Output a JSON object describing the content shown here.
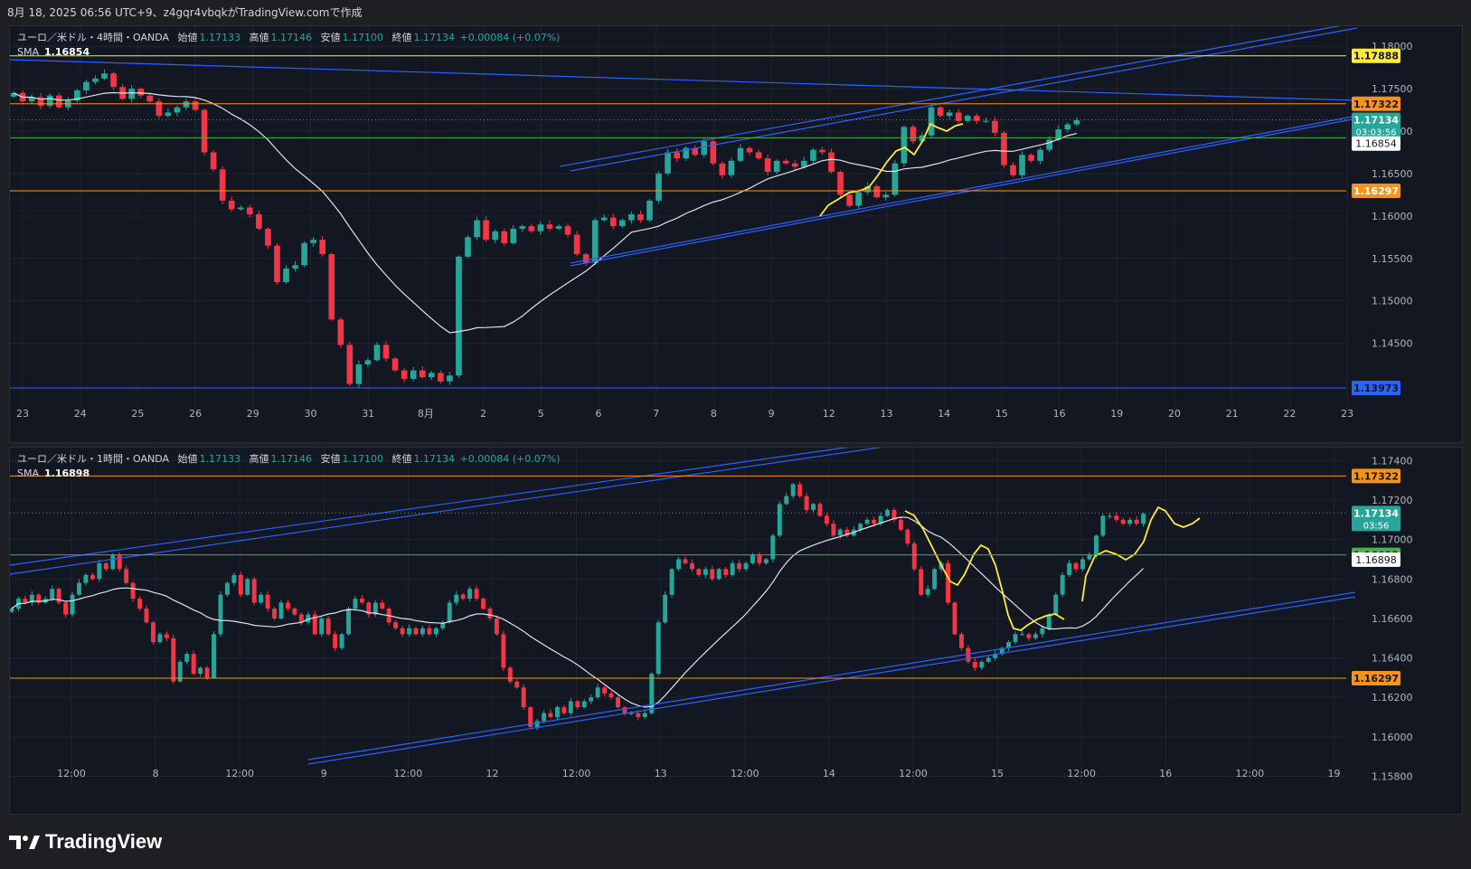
{
  "header": {
    "snapshot_info": "8月 18, 2025 06:56 UTC+9、z4gqr4vbqkがTradingView.comで作成"
  },
  "footer": {
    "brand": "TradingView"
  },
  "colors": {
    "bg": "#131722",
    "up": "#26a69a",
    "down": "#f23645",
    "sma": "#e0e3eb",
    "channel": "#2962ff",
    "orange": "#f7931a",
    "yellow": "#ffeb3b",
    "green_line": "#4caf50",
    "blue_line": "#2962ff",
    "grid": "#1f2330"
  },
  "chart_data": [
    {
      "type": "candlestick",
      "symbol": "ユーロ／米ドル・4時間・OANDA",
      "ohlc": {
        "open_label": "始値",
        "open": "1.17133",
        "high_label": "高値",
        "high": "1.17146",
        "low_label": "安値",
        "low": "1.17100",
        "close_label": "終値",
        "close": "1.17134",
        "change": "+0.00084 (+0.07%)"
      },
      "sma_label": "SMA",
      "sma_value": "1.16854",
      "ylim": [
        1.1376,
        1.1813
      ],
      "y_ticks": [
        "1.18000",
        "1.17500",
        "1.17000",
        "1.16500",
        "1.16000",
        "1.15500",
        "1.15000",
        "1.14500"
      ],
      "x_ticks": [
        "23",
        "24",
        "25",
        "26",
        "29",
        "30",
        "31",
        "8月",
        "2",
        "5",
        "6",
        "7",
        "8",
        "9",
        "12",
        "13",
        "14",
        "15",
        "16",
        "19",
        "20",
        "21",
        "22",
        "23"
      ],
      "horizontal_levels": [
        {
          "value": 1.17888,
          "label": "1.17888",
          "color": "#ffeb3b",
          "text_color": "#131722"
        },
        {
          "value": 1.17322,
          "label": "1.17322",
          "color": "#f7931a",
          "text_color": "#131722"
        },
        {
          "value": 1.16922,
          "label": "1.16922",
          "color": "#4caf50",
          "text_color": "#131722"
        },
        {
          "value": 1.16297,
          "label": "1.16297",
          "color": "#f7931a",
          "text_color": "#ffffff"
        },
        {
          "value": 1.13973,
          "label": "1.13973",
          "color": "#2962ff",
          "text_color": "#131722"
        }
      ],
      "last_price": {
        "value": 1.17134,
        "label": "1.17134",
        "countdown": "03:03:56"
      },
      "sma_tag": {
        "value": 1.16854,
        "label": "1.16854"
      },
      "closes": [
        1.1745,
        1.1735,
        1.174,
        1.173,
        1.1742,
        1.1728,
        1.1736,
        1.1748,
        1.1758,
        1.1762,
        1.1768,
        1.1752,
        1.1738,
        1.175,
        1.1742,
        1.1735,
        1.1718,
        1.1722,
        1.1728,
        1.1735,
        1.1725,
        1.1675,
        1.1655,
        1.1618,
        1.1608,
        1.161,
        1.1602,
        1.1585,
        1.1565,
        1.1522,
        1.1538,
        1.1542,
        1.1568,
        1.1572,
        1.1555,
        1.1478,
        1.1448,
        1.1402,
        1.1425,
        1.143,
        1.1448,
        1.1432,
        1.1418,
        1.1408,
        1.1418,
        1.141,
        1.1415,
        1.1405,
        1.1412,
        1.1552,
        1.1575,
        1.1595,
        1.1572,
        1.1582,
        1.1568,
        1.1585,
        1.1588,
        1.1582,
        1.159,
        1.1585,
        1.1588,
        1.1578,
        1.1555,
        1.1545,
        1.1595,
        1.1598,
        1.1588,
        1.1595,
        1.1602,
        1.1595,
        1.1618,
        1.165,
        1.1675,
        1.1668,
        1.168,
        1.1672,
        1.1688,
        1.1662,
        1.1648,
        1.1665,
        1.168,
        1.1675,
        1.1668,
        1.1652,
        1.1665,
        1.1662,
        1.1658,
        1.1665,
        1.1678,
        1.1675,
        1.1652,
        1.1625,
        1.1612,
        1.1628,
        1.1635,
        1.1622,
        1.1625,
        1.1662,
        1.1705,
        1.1688,
        1.1695,
        1.1728,
        1.1718,
        1.1722,
        1.1712,
        1.1718,
        1.1712,
        1.1712,
        1.1698,
        1.166,
        1.1648,
        1.1672,
        1.1665,
        1.1678,
        1.169,
        1.1702,
        1.1708,
        1.1713
      ]
    },
    {
      "type": "candlestick",
      "symbol": "ユーロ／米ドル・1時間・OANDA",
      "ohlc": {
        "open_label": "始値",
        "open": "1.17133",
        "high_label": "高値",
        "high": "1.17146",
        "low_label": "安値",
        "low": "1.17100",
        "close_label": "終値",
        "close": "1.17134",
        "change": "+0.00084 (+0.07%)"
      },
      "sma_label": "SMA",
      "sma_value": "1.16898",
      "ylim": [
        1.1577,
        1.1742
      ],
      "y_ticks": [
        "1.17400",
        "1.17200",
        "1.17000",
        "1.16800",
        "1.16600",
        "1.16400",
        "1.16200",
        "1.16000",
        "1.15800"
      ],
      "x_ticks": [
        "12:00",
        "8",
        "12:00",
        "9",
        "12:00",
        "12",
        "12:00",
        "13",
        "12:00",
        "14",
        "12:00",
        "15",
        "12:00",
        "16",
        "12:00",
        "19"
      ],
      "horizontal_levels": [
        {
          "value": 1.17322,
          "label": "1.17322",
          "color": "#f7931a",
          "text_color": "#131722"
        },
        {
          "value": 1.16922,
          "label": "1.16922",
          "color": "#4caf50",
          "text_color": "#131722"
        },
        {
          "value": 1.16297,
          "label": "1.16297",
          "color": "#f7931a",
          "text_color": "#131722"
        }
      ],
      "last_price": {
        "value": 1.17134,
        "label": "1.17134",
        "countdown": "03:56"
      },
      "sma_tag": {
        "value": 1.16898,
        "label": "1.16898"
      },
      "closes": [
        1.1665,
        1.167,
        1.1668,
        1.1672,
        1.1668,
        1.167,
        1.1675,
        1.1668,
        1.1662,
        1.1672,
        1.1678,
        1.1682,
        1.168,
        1.1688,
        1.1685,
        1.1692,
        1.1685,
        1.1678,
        1.167,
        1.1665,
        1.1658,
        1.1648,
        1.1652,
        1.165,
        1.1628,
        1.1638,
        1.1642,
        1.1632,
        1.1635,
        1.163,
        1.1652,
        1.1672,
        1.1678,
        1.1682,
        1.1672,
        1.168,
        1.1668,
        1.1672,
        1.1665,
        1.166,
        1.1668,
        1.1665,
        1.1662,
        1.1658,
        1.1662,
        1.1652,
        1.166,
        1.1652,
        1.1645,
        1.1652,
        1.1665,
        1.167,
        1.1668,
        1.1662,
        1.1668,
        1.1665,
        1.1658,
        1.1655,
        1.1652,
        1.1655,
        1.1652,
        1.1655,
        1.1652,
        1.1655,
        1.1658,
        1.1668,
        1.1672,
        1.167,
        1.1675,
        1.167,
        1.1665,
        1.166,
        1.1652,
        1.1635,
        1.1628,
        1.1625,
        1.1615,
        1.1605,
        1.1608,
        1.1612,
        1.161,
        1.1615,
        1.1612,
        1.1618,
        1.1615,
        1.1618,
        1.162,
        1.1625,
        1.1622,
        1.162,
        1.1615,
        1.1612,
        1.1612,
        1.161,
        1.1612,
        1.1632,
        1.1658,
        1.1672,
        1.1685,
        1.169,
        1.1688,
        1.1685,
        1.1682,
        1.1685,
        1.168,
        1.1685,
        1.1682,
        1.1688,
        1.1685,
        1.1688,
        1.1692,
        1.1688,
        1.169,
        1.1702,
        1.1718,
        1.1722,
        1.1728,
        1.1722,
        1.1715,
        1.1718,
        1.1712,
        1.1708,
        1.1702,
        1.1705,
        1.1702,
        1.1705,
        1.1708,
        1.171,
        1.1708,
        1.1712,
        1.1715,
        1.171,
        1.1705,
        1.1698,
        1.1685,
        1.1672,
        1.1675,
        1.1685,
        1.1688,
        1.1668,
        1.1652,
        1.1645,
        1.1638,
        1.1635,
        1.1638,
        1.164,
        1.1642,
        1.1645,
        1.1648,
        1.1652,
        1.1652,
        1.165,
        1.1652,
        1.1655,
        1.1662,
        1.1672,
        1.1682,
        1.1688,
        1.1685,
        1.169,
        1.1692,
        1.1702,
        1.1712,
        1.1712,
        1.171,
        1.1708,
        1.171,
        1.1708,
        1.1713
      ]
    }
  ]
}
